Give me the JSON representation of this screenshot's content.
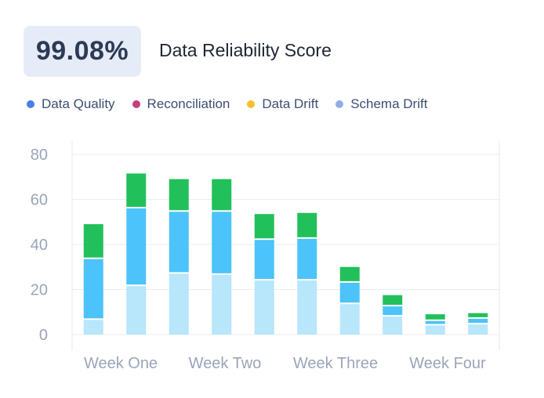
{
  "header": {
    "score_value": "99.08%",
    "score_title": "Data Reliability Score"
  },
  "legend": [
    {
      "label": "Data Quality",
      "color": "#4a7ee6"
    },
    {
      "label": "Reconciliation",
      "color": "#c73e7a"
    },
    {
      "label": "Data Drift",
      "color": "#f5c02c"
    },
    {
      "label": "Schema Drift",
      "color": "#90aee6"
    }
  ],
  "chart_data": {
    "type": "bar",
    "stacked": true,
    "ylim": [
      0,
      80
    ],
    "yticks": [
      0,
      20,
      40,
      60,
      80
    ],
    "xtick_labels": [
      "Week One",
      "Week Two",
      "Week Three",
      "Week Four"
    ],
    "grid": true,
    "segment_colors": [
      "#b8e6fb",
      "#4cc3fa",
      "#22c05a"
    ],
    "bars": [
      [
        6.5,
        27,
        15.5
      ],
      [
        21.5,
        34.5,
        15.5
      ],
      [
        27,
        27.5,
        14.5
      ],
      [
        26.5,
        28,
        14.5
      ],
      [
        24,
        18,
        11.5
      ],
      [
        24,
        18.5,
        11.5
      ],
      [
        13.5,
        9.5,
        7
      ],
      [
        8,
        4.5,
        5
      ],
      [
        4,
        2,
        3
      ],
      [
        4.5,
        2.5,
        2.5
      ]
    ]
  }
}
